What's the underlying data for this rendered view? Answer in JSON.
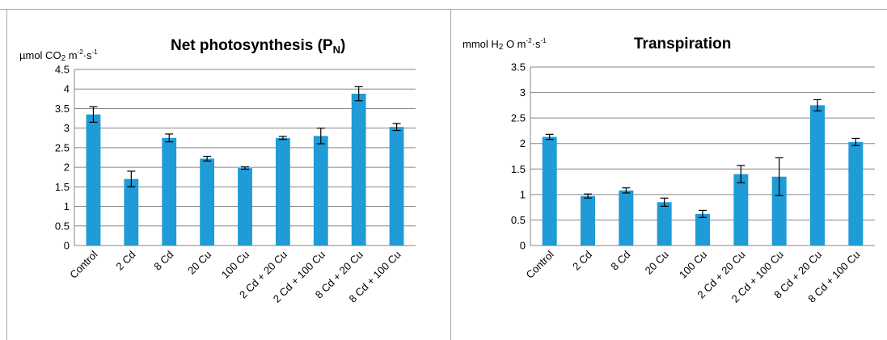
{
  "chart_data": [
    {
      "type": "bar",
      "title": "Net photosynthesis (P",
      "title_sub": "N",
      "title_end": ")",
      "unit": {
        "pre": "µmol CO",
        "sub": "2",
        "mid": " m",
        "sup1": "-2",
        "mid2": "·s",
        "sup2": "-1"
      },
      "categories": [
        "Control",
        "2 Cd",
        "8 Cd",
        "20 Cu",
        "100 Cu",
        "2 Cd + 20 Cu",
        "2 Cd + 100 Cu",
        "8 Cd + 20 Cu",
        "8 Cd + 100 Cu"
      ],
      "values": [
        3.35,
        1.7,
        2.75,
        2.22,
        1.98,
        2.75,
        2.8,
        3.88,
        3.03
      ],
      "errors": [
        0.2,
        0.2,
        0.1,
        0.06,
        0.03,
        0.04,
        0.2,
        0.18,
        0.09
      ],
      "yticks": [
        "0",
        "0.5",
        "1",
        "1.5",
        "2",
        "2.5",
        "3",
        "3.5",
        "4",
        "4.5"
      ],
      "ylim": [
        0,
        4.5
      ],
      "grid": true,
      "bar_color": "#1f9bd7"
    },
    {
      "type": "bar",
      "title": "Transpiration",
      "title_sub": "",
      "title_end": "",
      "unit": {
        "pre": "mmol H",
        "sub": "2",
        "mid": " O m",
        "sup1": "-2",
        "mid2": "·s",
        "sup2": "-1"
      },
      "categories": [
        "Control",
        "2 Cd",
        "8 Cd",
        "20 Cu",
        "100 Cu",
        "2 Cd + 20 Cu",
        "2 Cd + 100 Cu",
        "8 Cd + 20 Cu",
        "8 Cd + 100 Cu"
      ],
      "values": [
        2.13,
        0.97,
        1.08,
        0.85,
        0.62,
        1.4,
        1.35,
        2.75,
        2.03
      ],
      "errors": [
        0.05,
        0.04,
        0.05,
        0.08,
        0.07,
        0.17,
        0.37,
        0.11,
        0.07
      ],
      "yticks": [
        "0",
        "0.5",
        "1",
        "1.5",
        "2",
        "2.5",
        "3",
        "3.5"
      ],
      "ylim": [
        0,
        3.5
      ],
      "grid": true,
      "bar_color": "#1f9bd7"
    }
  ]
}
